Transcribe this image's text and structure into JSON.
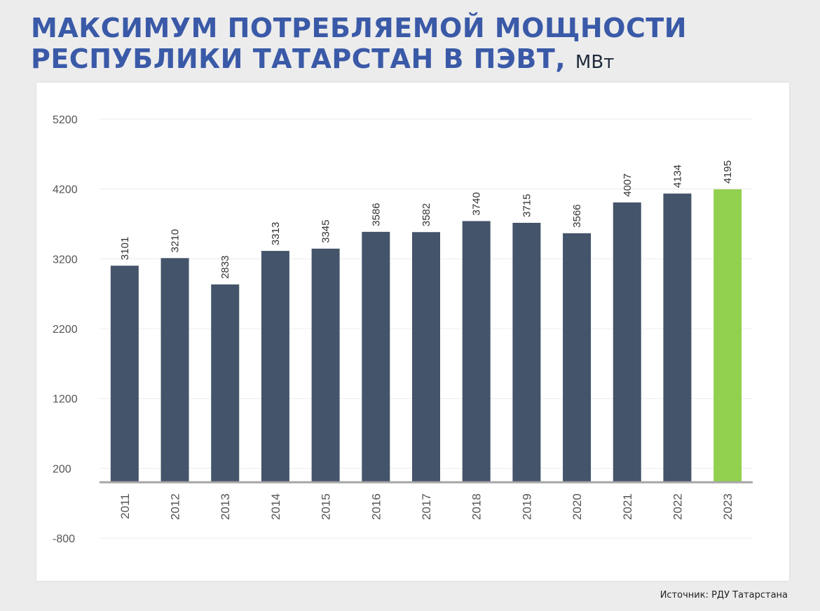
{
  "header": {
    "title_line1": "МАКСИМУМ ПОТРЕБЛЯЕМОЙ МОЩНОСТИ",
    "title_line2": "РЕСПУБЛИКИ ТАТАРСТАН В ПЭВТ,",
    "unit": "МВт"
  },
  "footer": {
    "source": "Источник: РДУ Татарстана"
  },
  "colors": {
    "bar": "#44546a",
    "highlight": "#92d050",
    "title": "#3a5aa8"
  },
  "chart_data": {
    "type": "bar",
    "title": "МАКСИМУМ ПОТРЕБЛЯЕМОЙ МОЩНОСТИ РЕСПУБЛИКИ ТАТАРСТАН В ПЭВТ, МВт",
    "xlabel": "",
    "ylabel": "",
    "categories": [
      "2011",
      "2012",
      "2013",
      "2014",
      "2015",
      "2016",
      "2017",
      "2018",
      "2019",
      "2020",
      "2021",
      "2022",
      "2023"
    ],
    "values": [
      3101,
      3210,
      2833,
      3313,
      3345,
      3586,
      3582,
      3740,
      3715,
      3566,
      4007,
      4134,
      4195
    ],
    "highlight_category": "2023",
    "y_ticks": [
      "-800",
      "200",
      "1200",
      "2200",
      "3200",
      "4200",
      "5200"
    ],
    "ylim": [
      -800,
      5200
    ],
    "baseline": 0,
    "grid": true
  }
}
